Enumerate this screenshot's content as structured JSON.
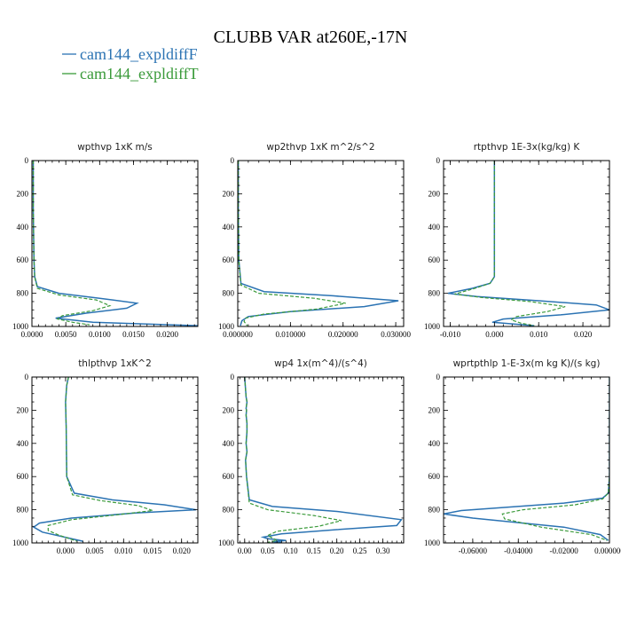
{
  "title": "CLUBB VAR at260E,-17N",
  "legend": [
    {
      "label": "cam144_expldiffF",
      "color": "#2b73b3",
      "dash": ""
    },
    {
      "label": "cam144_expldiffT",
      "color": "#3a9a3a",
      "dash": "4,2"
    }
  ],
  "chart_data": [
    {
      "type": "line",
      "title": "wpthvp   1xK m/s",
      "xlim": [
        0,
        0.0245
      ],
      "ylim": [
        1000,
        0
      ],
      "x_ticks": [
        0,
        0.005,
        0.01,
        0.015,
        0.02
      ],
      "x_tick_labels": [
        "0.0000",
        "0.0050",
        "0.0100",
        "0.0150",
        "0.0200"
      ],
      "y_ticks": [
        0,
        200,
        400,
        600,
        800,
        1000
      ],
      "y_tick_labels": [
        "0",
        "200",
        "400",
        "600",
        "800",
        "1000"
      ],
      "series": [
        {
          "name": "cam144_expldiffF",
          "x": [
            0.0002,
            0.0002,
            0.0003,
            0.0004,
            0.0008,
            0.004,
            0.01,
            0.0155,
            0.014,
            0.008,
            0.0035,
            0.009,
            0.0245
          ],
          "y": [
            0,
            300,
            600,
            700,
            760,
            800,
            830,
            860,
            890,
            920,
            950,
            975,
            995
          ]
        },
        {
          "name": "cam144_expldiffT",
          "x": [
            0.0002,
            0.0002,
            0.0003,
            0.0004,
            0.0008,
            0.004,
            0.0095,
            0.0115,
            0.009,
            0.0045,
            0.0038,
            0.006,
            0.0085
          ],
          "y": [
            0,
            300,
            600,
            700,
            770,
            810,
            840,
            875,
            905,
            935,
            955,
            975,
            990
          ]
        }
      ]
    },
    {
      "type": "line",
      "title": "wp2thvp   1xK m^2/s^2",
      "xlim": [
        0,
        0.0315
      ],
      "ylim": [
        1000,
        0
      ],
      "x_ticks": [
        0,
        0.01,
        0.02,
        0.03
      ],
      "x_tick_labels": [
        "0.000000",
        "0.010000",
        "0.020000",
        "0.030000"
      ],
      "y_ticks": [
        0,
        200,
        400,
        600,
        800,
        1000
      ],
      "y_tick_labels": [
        "0",
        "200",
        "400",
        "600",
        "800",
        "1000"
      ],
      "series": [
        {
          "name": "cam144_expldiffF",
          "x": [
            0.0001,
            0.0001,
            0.0002,
            0.0006,
            0.005,
            0.018,
            0.0305,
            0.024,
            0.01,
            0.002,
            0.0008,
            0.0005
          ],
          "y": [
            0,
            300,
            600,
            740,
            790,
            815,
            845,
            880,
            910,
            940,
            965,
            995
          ]
        },
        {
          "name": "cam144_expldiffT",
          "x": [
            0.0001,
            0.0001,
            0.0002,
            0.0006,
            0.004,
            0.0145,
            0.0205,
            0.015,
            0.005,
            0.0015,
            0.0012,
            0.0018
          ],
          "y": [
            0,
            300,
            600,
            750,
            800,
            830,
            860,
            895,
            925,
            950,
            970,
            995
          ]
        }
      ]
    },
    {
      "type": "line",
      "title": "rtpthvp   1E-3x(kg/kg) K",
      "xlim": [
        -0.0115,
        0.026
      ],
      "ylim": [
        1000,
        0
      ],
      "x_ticks": [
        -0.01,
        0,
        0.01,
        0.02
      ],
      "x_tick_labels": [
        "-0.010",
        "0.000",
        "0.010",
        "0.020"
      ],
      "y_ticks": [
        0,
        200,
        400,
        600,
        800,
        1000
      ],
      "y_tick_labels": [
        "0",
        "200",
        "400",
        "600",
        "800",
        "1000"
      ],
      "series": [
        {
          "name": "cam144_expldiffF",
          "x": [
            0,
            0,
            0,
            -0.001,
            -0.005,
            -0.0105,
            -0.004,
            0.01,
            0.023,
            0.026,
            0.015,
            0.002,
            -0.0005,
            0.009
          ],
          "y": [
            0,
            300,
            700,
            740,
            770,
            800,
            820,
            845,
            870,
            900,
            930,
            955,
            975,
            995
          ]
        },
        {
          "name": "cam144_expldiffT",
          "x": [
            0,
            0,
            0,
            -0.001,
            -0.005,
            -0.009,
            -0.003,
            0.008,
            0.016,
            0.012,
            0.005,
            0.0038,
            0.006,
            0.009
          ],
          "y": [
            0,
            300,
            700,
            740,
            775,
            805,
            825,
            850,
            880,
            910,
            940,
            960,
            980,
            995
          ]
        }
      ]
    },
    {
      "type": "line",
      "title": "thlpthvp   1xK^2",
      "xlim": [
        -0.0058,
        0.0228
      ],
      "ylim": [
        1000,
        0
      ],
      "x_ticks": [
        0,
        0.005,
        0.01,
        0.015,
        0.02
      ],
      "x_tick_labels": [
        "0.000",
        "0.005",
        "0.010",
        "0.015",
        "0.020"
      ],
      "y_ticks": [
        0,
        200,
        400,
        600,
        800,
        1000
      ],
      "y_tick_labels": [
        "0",
        "200",
        "400",
        "600",
        "800",
        "1000"
      ],
      "series": [
        {
          "name": "cam144_expldiffF",
          "x": [
            0.0005,
            0.0002,
            0,
            0.0001,
            0.0002,
            0.0015,
            0.008,
            0.017,
            0.0225,
            0.012,
            0.001,
            -0.0045,
            -0.0055,
            -0.004,
            0.003
          ],
          "y": [
            0,
            50,
            150,
            300,
            600,
            700,
            740,
            770,
            800,
            820,
            850,
            880,
            905,
            935,
            990
          ]
        },
        {
          "name": "cam144_expldiffT",
          "x": [
            0.0005,
            0.0002,
            0,
            0.0001,
            0.0002,
            0.0012,
            0.006,
            0.0125,
            0.015,
            0.009,
            0.001,
            -0.003,
            -0.003,
            -0.001,
            0.002
          ],
          "y": [
            0,
            50,
            150,
            300,
            600,
            710,
            745,
            775,
            805,
            830,
            860,
            895,
            925,
            955,
            990
          ]
        }
      ]
    },
    {
      "type": "line",
      "title": "wp4   1x(m^4)/(s^4)",
      "xlim": [
        -0.015,
        0.345
      ],
      "ylim": [
        1000,
        0
      ],
      "x_ticks": [
        0,
        0.05,
        0.1,
        0.15,
        0.2,
        0.25,
        0.3
      ],
      "x_tick_labels": [
        "0.00",
        "0.05",
        "0.10",
        "0.15",
        "0.20",
        "0.25",
        "0.30"
      ],
      "y_ticks": [
        0,
        200,
        400,
        600,
        800,
        1000
      ],
      "y_tick_labels": [
        "0",
        "200",
        "400",
        "600",
        "800",
        "1000"
      ],
      "series": [
        {
          "name": "cam144_expldiffF",
          "x": [
            0,
            0.003,
            0.005,
            0.003,
            0.004,
            0.003,
            0.005,
            0.005,
            0.003,
            0.005,
            0.002,
            0.004,
            0.01,
            0.06,
            0.2,
            0.34,
            0.33,
            0.2,
            0.08,
            0.04,
            0.05,
            0.09,
            0.06,
            0.08
          ],
          "y": [
            0,
            120,
            150,
            190,
            200,
            230,
            280,
            330,
            400,
            450,
            500,
            600,
            740,
            780,
            810,
            860,
            895,
            920,
            945,
            965,
            975,
            985,
            992,
            997
          ]
        },
        {
          "name": "cam144_expldiffT",
          "x": [
            0,
            0.003,
            0.005,
            0.003,
            0.004,
            0.003,
            0.005,
            0.005,
            0.003,
            0.005,
            0.002,
            0.004,
            0.01,
            0.05,
            0.15,
            0.21,
            0.16,
            0.07,
            0.05,
            0.06,
            0.07,
            0.05
          ],
          "y": [
            0,
            120,
            150,
            190,
            200,
            230,
            280,
            330,
            400,
            450,
            500,
            600,
            760,
            800,
            835,
            865,
            900,
            930,
            955,
            970,
            985,
            997
          ]
        }
      ]
    },
    {
      "type": "line",
      "title": "wprtpthlp   1-E-3x(m kg K)/(s kg)",
      "xlim": [
        -0.0728,
        0
      ],
      "ylim": [
        1000,
        0
      ],
      "x_ticks": [
        -0.06,
        -0.04,
        -0.02,
        0
      ],
      "x_tick_labels": [
        "-0.06000",
        "-0.04000",
        "-0.02000",
        "0.000000"
      ],
      "y_ticks": [
        0,
        200,
        400,
        600,
        800,
        1000
      ],
      "y_tick_labels": [
        "0",
        "200",
        "400",
        "600",
        "800",
        "1000"
      ],
      "series": [
        {
          "name": "cam144_expldiffF",
          "x": [
            0,
            0,
            -0.0005,
            -0.003,
            -0.02,
            -0.065,
            -0.0728,
            -0.06,
            -0.02,
            -0.004,
            -0.0005
          ],
          "y": [
            0,
            600,
            700,
            730,
            760,
            805,
            825,
            850,
            905,
            950,
            985
          ]
        },
        {
          "name": "cam144_expldiffT",
          "x": [
            0,
            0,
            -0.0005,
            -0.003,
            -0.015,
            -0.038,
            -0.047,
            -0.046,
            -0.03,
            -0.008,
            -0.001
          ],
          "y": [
            0,
            600,
            700,
            735,
            770,
            800,
            825,
            855,
            905,
            950,
            985
          ]
        }
      ]
    }
  ]
}
